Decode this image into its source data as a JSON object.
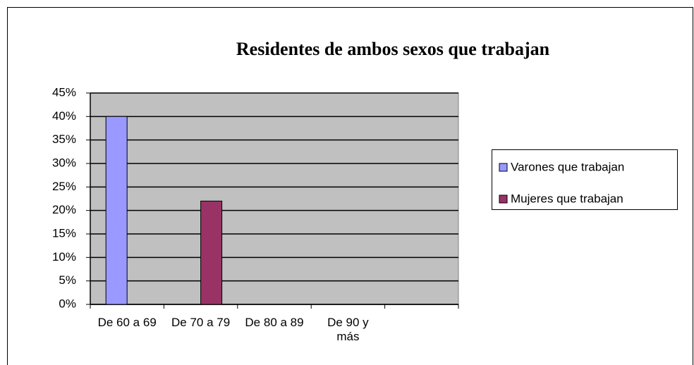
{
  "chart_data": {
    "type": "bar",
    "title": "Residentes de ambos sexos que trabajan",
    "categories": [
      "De 60 a 69",
      "De 70 a 79",
      "De 80 a 89",
      "De 90 y más",
      null
    ],
    "series": [
      {
        "name": "Varones que trabajan",
        "color": "#9999ff",
        "values": [
          40,
          0,
          0,
          0,
          null
        ]
      },
      {
        "name": "Mujeres que trabajan",
        "color": "#993366",
        "values": [
          0,
          22,
          0,
          0,
          null
        ]
      }
    ],
    "ylim": [
      0,
      45
    ],
    "yticks": [
      {
        "value": 0,
        "label": "0%"
      },
      {
        "value": 5,
        "label": "5%"
      },
      {
        "value": 10,
        "label": "10%"
      },
      {
        "value": 15,
        "label": "15%"
      },
      {
        "value": 20,
        "label": "20%"
      },
      {
        "value": 25,
        "label": "25%"
      },
      {
        "value": 30,
        "label": "30%"
      },
      {
        "value": 35,
        "label": "35%"
      },
      {
        "value": 40,
        "label": "40%"
      },
      {
        "value": 45,
        "label": "45%"
      }
    ],
    "grid": true,
    "legend": "right",
    "plot_background": "#c0c0c0"
  }
}
